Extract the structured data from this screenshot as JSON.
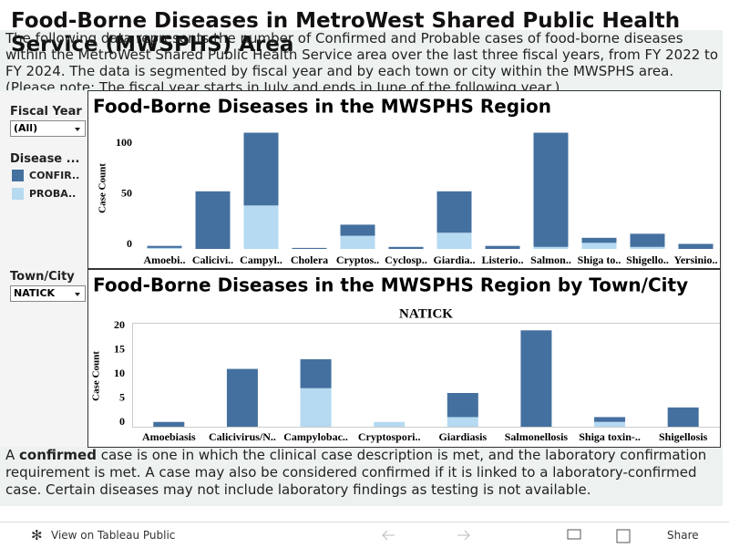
{
  "header": {
    "title": "Food-Borne Diseases in MetroWest Shared Public Health Service (MWSPHS) Area"
  },
  "description": "The following data represents the number of Confirmed and Probable cases of food-borne diseases within the MetroWest Shared Public Health Service area over the last three fiscal years, from FY 2022 to FY 2024. The data is segmented by fiscal year and by each town or city within the MWSPHS area. (Please note: The fiscal year starts in July and ends in June of the following year.)",
  "filters": {
    "fiscal_year": {
      "label": "Fiscal Year",
      "value": "(All)"
    },
    "disease_legend_title": "Disease ...",
    "town": {
      "label": "Town/City",
      "value": "NATICK"
    }
  },
  "chart_data": [
    {
      "type": "bar",
      "stacked": true,
      "title": "Food-Borne Diseases in the MWSPHS Region",
      "y_label": "Case Count",
      "categories": [
        "Amoebi..",
        "Calicivi..",
        "Campyl..",
        "Cholera",
        "Cryptos..",
        "Cyclosp..",
        "Giardia..",
        "Listerio..",
        "Salmon..",
        "Shiga to..",
        "Shigello..",
        "Yersinio.."
      ],
      "series": [
        {
          "name": "CONFIR..",
          "color": "#44709f",
          "values": [
            2,
            57,
            72,
            1,
            11,
            2,
            41,
            3,
            113,
            5,
            13,
            5
          ]
        },
        {
          "name": "PROBA..",
          "color": "#b5daf1",
          "values": [
            1,
            0,
            43,
            0,
            13,
            0,
            16,
            0,
            2,
            6,
            2,
            0
          ]
        }
      ],
      "ylim": [
        0,
        120
      ],
      "yticks": [
        0,
        50,
        100
      ],
      "grid": false
    },
    {
      "type": "bar",
      "stacked": true,
      "title": "Food-Borne Diseases in the MWSPHS Region by Town/City",
      "subtitle": "NATICK",
      "y_label": "Case Count",
      "categories": [
        "Amoebiasis",
        "Calicivirus/N..",
        "Campylobac..",
        "Cryptospori..",
        "Giardiasis",
        "Salmonellosis",
        "Shiga toxin-..",
        "Shigellosis"
      ],
      "series": [
        {
          "color": "#44709f",
          "values": [
            1,
            12,
            6,
            0,
            5,
            20,
            1,
            4
          ]
        },
        {
          "color": "#b5daf1",
          "values": [
            0,
            0,
            8,
            1,
            2,
            0,
            1,
            0
          ]
        }
      ],
      "ylim": [
        0,
        21
      ],
      "yticks": [
        0,
        5,
        10,
        15,
        20
      ],
      "grid": false
    }
  ],
  "footer": {
    "parts": [
      "A ",
      "confirmed",
      " case is one in which the clinical case description is met, and the laboratory confirmation requirement is met. A case may also be considered confirmed if it is linked to a laboratory-confirmed case. Certain diseases may not include laboratory findings as testing is not available."
    ]
  },
  "toolbar": {
    "view": "View on Tableau Public",
    "share": "Share"
  }
}
